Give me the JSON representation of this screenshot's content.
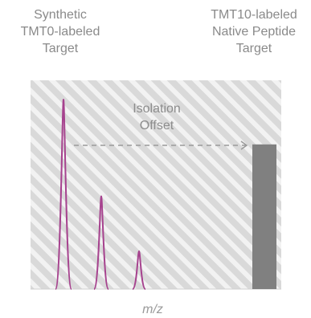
{
  "labels": {
    "synthetic_target": [
      "Synthetic",
      "TMT0-labeled",
      "Target"
    ],
    "native_target": [
      "TMT10-labeled",
      "Native Peptide",
      "Target"
    ],
    "isolation_offset": [
      "Isolation",
      "Offset"
    ],
    "x_axis": "m/z"
  },
  "colors": {
    "peaks": "#a6428e",
    "target_bar": "#808080",
    "panel_background": "#d9d9d9",
    "hatch_lines": "#f2f2f2",
    "arrow": "#9a9a9a",
    "text": "#8a8a8a"
  },
  "icons": {
    "offset_arrow": "dashed-right-arrow"
  },
  "chart_data": {
    "type": "diagram",
    "synthetic_peaks_relative_height": [
      1.0,
      0.49,
      0.2
    ],
    "native_target_relative_height": 0.78
  }
}
